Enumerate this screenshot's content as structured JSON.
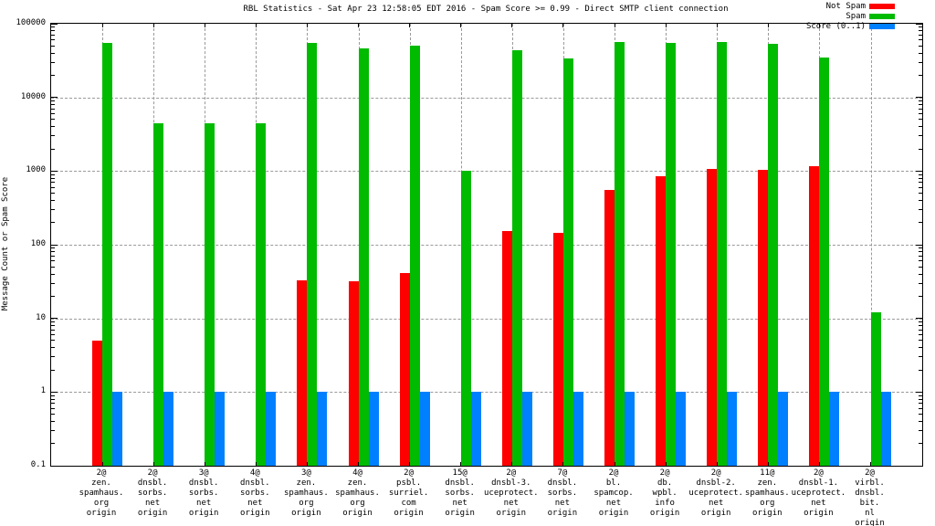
{
  "title": "RBL Statistics - Sat Apr 23 12:58:05 EDT 2016 - Spam Score >= 0.99 - Direct SMTP client connection",
  "y_axis": {
    "label": "Message Count or Spam Score",
    "tick_labels": [
      "100000",
      "10000",
      "1000",
      "100",
      "10",
      "1",
      "0.1"
    ]
  },
  "legend": [
    {
      "label": "Not Spam",
      "color": "#ff0000"
    },
    {
      "label": "Spam",
      "color": "#00bb00"
    },
    {
      "label": "Score (0..1)",
      "color": "#0080ff"
    }
  ],
  "colors": {
    "not_spam": "#ff0000",
    "spam": "#00bb00",
    "score": "#0080ff",
    "grid": "#9a9a9a",
    "frame": "#000000",
    "background": "#ffffff"
  },
  "chart_data": {
    "type": "bar",
    "title": "RBL Statistics - Sat Apr 23 12:58:05 EDT 2016 - Spam Score >= 0.99 - Direct SMTP client connection",
    "xlabel": "",
    "ylabel": "Message Count or Spam Score",
    "y_scale": "log10",
    "ylim": [
      0.1,
      100000
    ],
    "y_ticks": [
      {
        "label": "100000",
        "value": 100000
      },
      {
        "label": "10000",
        "value": 10000
      },
      {
        "label": "1000",
        "value": 1000
      },
      {
        "label": "100",
        "value": 100
      },
      {
        "label": "10",
        "value": 10
      },
      {
        "label": "1",
        "value": 1
      },
      {
        "label": "0.1",
        "value": 0.1
      }
    ],
    "grid": "dashed horizontal lines at each decade and dashed vertical line at each category",
    "legend_position": "top-right",
    "categories": [
      "2@ zen.spamhaus.org origin",
      "2@ dnsbl.sorbs.net origin",
      "3@ dnsbl.sorbs.net origin",
      "4@ dnsbl.sorbs.net origin",
      "3@ zen.spamhaus.org origin",
      "4@ zen.spamhaus.org origin",
      "2@ psbl.surriel.com origin",
      "15@ dnsbl.sorbs.net origin",
      "2@ dnsbl-3.uceprotect.net origin",
      "7@ dnsbl.sorbs.net origin",
      "2@ bl.spamcop.net origin",
      "2@ db.wpbl.info origin",
      "2@ dnsbl-2.uceprotect.net origin",
      "11@ zen.spamhaus.org origin",
      "2@ dnsbl-1.uceprotect.net origin",
      "2@ virbl.dnsbl.bit.nl origin"
    ],
    "category_label_lines": [
      [
        "2@",
        "zen.",
        "spamhaus.",
        "org",
        "origin"
      ],
      [
        "2@",
        "dnsbl.",
        "sorbs.",
        "net",
        "origin"
      ],
      [
        "3@",
        "dnsbl.",
        "sorbs.",
        "net",
        "origin"
      ],
      [
        "4@",
        "dnsbl.",
        "sorbs.",
        "net",
        "origin"
      ],
      [
        "3@",
        "zen.",
        "spamhaus.",
        "org",
        "origin"
      ],
      [
        "4@",
        "zen.",
        "spamhaus.",
        "org",
        "origin"
      ],
      [
        "2@",
        "psbl.",
        "surriel.",
        "com",
        "origin"
      ],
      [
        "15@",
        "dnsbl.",
        "sorbs.",
        "net",
        "origin"
      ],
      [
        "2@",
        "dnsbl-3.",
        "uceprotect.",
        "net",
        "origin"
      ],
      [
        "7@",
        "dnsbl.",
        "sorbs.",
        "net",
        "origin"
      ],
      [
        "2@",
        "bl.",
        "spamcop.",
        "net",
        "origin"
      ],
      [
        "2@",
        "db.",
        "wpbl.",
        "info",
        "origin"
      ],
      [
        "2@",
        "dnsbl-2.",
        "uceprotect.",
        "net",
        "origin"
      ],
      [
        "11@",
        "zen.",
        "spamhaus.",
        "org",
        "origin"
      ],
      [
        "2@",
        "dnsbl-1.",
        "uceprotect.",
        "net",
        "origin"
      ],
      [
        "2@",
        "virbl.",
        "dnsbl.",
        "bit.",
        "nl",
        "origin"
      ]
    ],
    "series": [
      {
        "name": "Not Spam",
        "color": "#ff0000",
        "values": [
          5,
          0,
          0,
          0,
          33,
          32,
          41,
          0,
          155,
          145,
          550,
          850,
          1080,
          1050,
          1150,
          0
        ]
      },
      {
        "name": "Spam",
        "color": "#00bb00",
        "values": [
          55000,
          4500,
          4500,
          4500,
          55000,
          46000,
          51000,
          1000,
          44000,
          34000,
          57000,
          55000,
          56000,
          53000,
          35000,
          12
        ]
      },
      {
        "name": "Score (0..1)",
        "color": "#0080ff",
        "values": [
          1,
          1,
          1,
          1,
          1,
          1,
          1,
          1,
          1,
          1,
          1,
          1,
          1,
          1,
          1,
          1
        ]
      }
    ]
  }
}
